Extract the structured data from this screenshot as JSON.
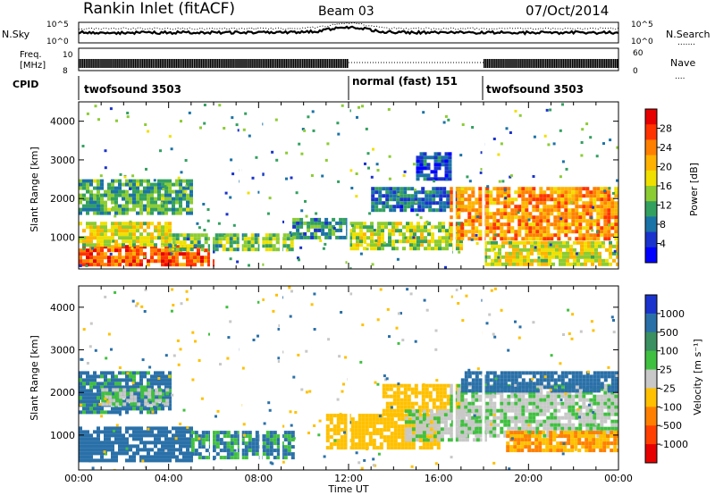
{
  "header": {
    "station": "Rankin Inlet (fitACF)",
    "beam": "Beam 03",
    "date": "07/Oct/2014"
  },
  "labels": {
    "nsky": "N.Sky",
    "nsearch": "N.Search",
    "nsearch_key": ".......",
    "freq_line1": "Freq.",
    "freq_line2": "[MHz]",
    "nave": "Nave",
    "nave_key": "....",
    "cpid": "CPID",
    "slant_range": "Slant Range [km]",
    "time_axis": "Time UT",
    "power_cbar": "Power [dB]",
    "velocity_cbar": "Velocity  [m s⁻¹]"
  },
  "noise_axis": {
    "top": "10^5",
    "bottom": "10^0"
  },
  "freq_axis": {
    "left_top": "10",
    "left_bottom": "8",
    "right_top": "60",
    "right_bottom": "0"
  },
  "cpid_segments": [
    {
      "label": "twofsound 3503",
      "start_hour": 0.0,
      "end_hour": 12.0
    },
    {
      "label": "normal (fast) 151",
      "start_hour": 12.0,
      "end_hour": 18.0
    },
    {
      "label": "twofsound 3503",
      "start_hour": 18.0,
      "end_hour": 24.0
    }
  ],
  "chart_data": [
    {
      "type": "heatmap",
      "name": "power",
      "title": "",
      "xlabel": "Time UT",
      "ylabel": "Slant Range [km]",
      "xlim": [
        0,
        24
      ],
      "ylim": [
        180,
        4500
      ],
      "x_ticks": [
        "00:00",
        "04:00",
        "08:00",
        "12:00",
        "16:00",
        "20:00",
        "00:00"
      ],
      "y_ticks": [
        1000,
        2000,
        3000,
        4000
      ],
      "colorbar": {
        "label": "Power [dB]",
        "ticks": [
          "28",
          "24",
          "20",
          "16",
          "12",
          "8",
          "4"
        ],
        "colors": [
          "#e60000",
          "#ff3300",
          "#ff8000",
          "#ffb300",
          "#f0e000",
          "#8ccc33",
          "#33a060",
          "#1a73a6",
          "#1a33cc",
          "#0000ff"
        ]
      },
      "bands": [
        {
          "t": [
            0.0,
            6.0
          ],
          "range": [
            300,
            800
          ],
          "level": 27
        },
        {
          "t": [
            0.0,
            4.0
          ],
          "range": [
            800,
            1400
          ],
          "level": 18
        },
        {
          "t": [
            0.0,
            5.0
          ],
          "range": [
            1600,
            2500
          ],
          "level": 12
        },
        {
          "t": [
            4.0,
            9.5
          ],
          "range": [
            700,
            1100
          ],
          "level": 14
        },
        {
          "t": [
            9.5,
            12.0
          ],
          "range": [
            1000,
            1500
          ],
          "level": 10
        },
        {
          "t": [
            12.0,
            17.0
          ],
          "range": [
            700,
            1400
          ],
          "level": 16
        },
        {
          "t": [
            13.0,
            17.0
          ],
          "range": [
            1700,
            2300
          ],
          "level": 8
        },
        {
          "t": [
            15.0,
            16.5
          ],
          "range": [
            2500,
            3200
          ],
          "level": 6
        },
        {
          "t": [
            16.5,
            24.0
          ],
          "range": [
            1000,
            2300
          ],
          "level": 24
        },
        {
          "t": [
            18.0,
            24.0
          ],
          "range": [
            300,
            900
          ],
          "level": 18
        }
      ]
    },
    {
      "type": "heatmap",
      "name": "velocity",
      "title": "",
      "xlabel": "Time UT",
      "ylabel": "Slant Range [km]",
      "xlim": [
        0,
        24
      ],
      "ylim": [
        180,
        4500
      ],
      "x_ticks": [
        "00:00",
        "04:00",
        "08:00",
        "12:00",
        "16:00",
        "20:00",
        "00:00"
      ],
      "y_ticks": [
        1000,
        2000,
        3000,
        4000
      ],
      "colorbar": {
        "label": "Velocity [m s-1]",
        "ticks": [
          "1000",
          "500",
          "100",
          "25",
          "-25",
          "-100",
          "-500",
          "-1000"
        ],
        "colors": [
          "#1a33cc",
          "#2a70a8",
          "#3a9060",
          "#40c040",
          "#c8c8c8",
          "#ffc000",
          "#ff8000",
          "#ff4000",
          "#e60000"
        ]
      },
      "bands": [
        {
          "t": [
            0.0,
            5.0
          ],
          "range": [
            400,
            1200
          ],
          "level": 200
        },
        {
          "t": [
            0.0,
            4.0
          ],
          "range": [
            1500,
            2500
          ],
          "level": 150
        },
        {
          "t": [
            1.0,
            4.0
          ],
          "range": [
            1700,
            2100
          ],
          "level": 0
        },
        {
          "t": [
            5.0,
            9.5
          ],
          "range": [
            500,
            1100
          ],
          "level": 120
        },
        {
          "t": [
            11.0,
            16.0
          ],
          "range": [
            700,
            1500
          ],
          "level": -300
        },
        {
          "t": [
            13.5,
            17.0
          ],
          "range": [
            1500,
            2200
          ],
          "level": -300
        },
        {
          "t": [
            14.5,
            18.0
          ],
          "range": [
            900,
            1600
          ],
          "level": 0
        },
        {
          "t": [
            16.5,
            24.0
          ],
          "range": [
            1000,
            2200
          ],
          "level": 0
        },
        {
          "t": [
            19.0,
            24.0
          ],
          "range": [
            600,
            1100
          ],
          "level": -500
        },
        {
          "t": [
            17.0,
            24.0
          ],
          "range": [
            2000,
            2500
          ],
          "level": 200
        }
      ]
    }
  ]
}
